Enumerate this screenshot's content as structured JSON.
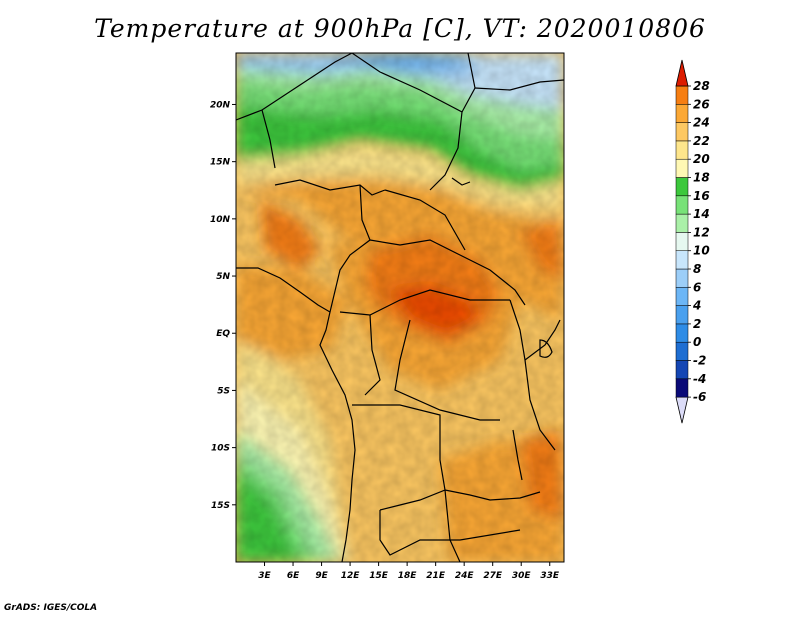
{
  "title": "Temperature at 900hPa [C], VT: 2020010806",
  "footer": "GrADS: IGES/COLA",
  "map": {
    "lon_range": [
      0,
      34.5
    ],
    "lat_range": [
      -20,
      24.5
    ],
    "lon_ticks": [
      {
        "value": 3,
        "label": "3E"
      },
      {
        "value": 6,
        "label": "6E"
      },
      {
        "value": 9,
        "label": "9E"
      },
      {
        "value": 12,
        "label": "12E"
      },
      {
        "value": 15,
        "label": "15E"
      },
      {
        "value": 18,
        "label": "18E"
      },
      {
        "value": 21,
        "label": "21E"
      },
      {
        "value": 24,
        "label": "24E"
      },
      {
        "value": 27,
        "label": "27E"
      },
      {
        "value": 30,
        "label": "30E"
      },
      {
        "value": 33,
        "label": "33E"
      }
    ],
    "lat_ticks": [
      {
        "value": 20,
        "label": "20N"
      },
      {
        "value": 15,
        "label": "15N"
      },
      {
        "value": 10,
        "label": "10N"
      },
      {
        "value": 5,
        "label": "5N"
      },
      {
        "value": 0,
        "label": "EQ"
      },
      {
        "value": -5,
        "label": "5S"
      },
      {
        "value": -10,
        "label": "10S"
      },
      {
        "value": -15,
        "label": "15S"
      }
    ]
  },
  "colorbar": {
    "levels": [
      "-6",
      "-4",
      "-2",
      "0",
      "2",
      "4",
      "6",
      "8",
      "10",
      "12",
      "14",
      "16",
      "18",
      "20",
      "22",
      "24",
      "26",
      "28"
    ],
    "colors": [
      "#dcdcf8",
      "#0a0a78",
      "#1446b4",
      "#1e6ed2",
      "#2e8ce6",
      "#4aa0ee",
      "#6cb6f6",
      "#9ccef8",
      "#c8e6fc",
      "#e6f8f0",
      "#aaf0a8",
      "#78e278",
      "#3cc83c",
      "#fff8b4",
      "#fee68c",
      "#fdc862",
      "#fba835",
      "#f67e12",
      "#ee4c04",
      "#dc1c00"
    ]
  }
}
